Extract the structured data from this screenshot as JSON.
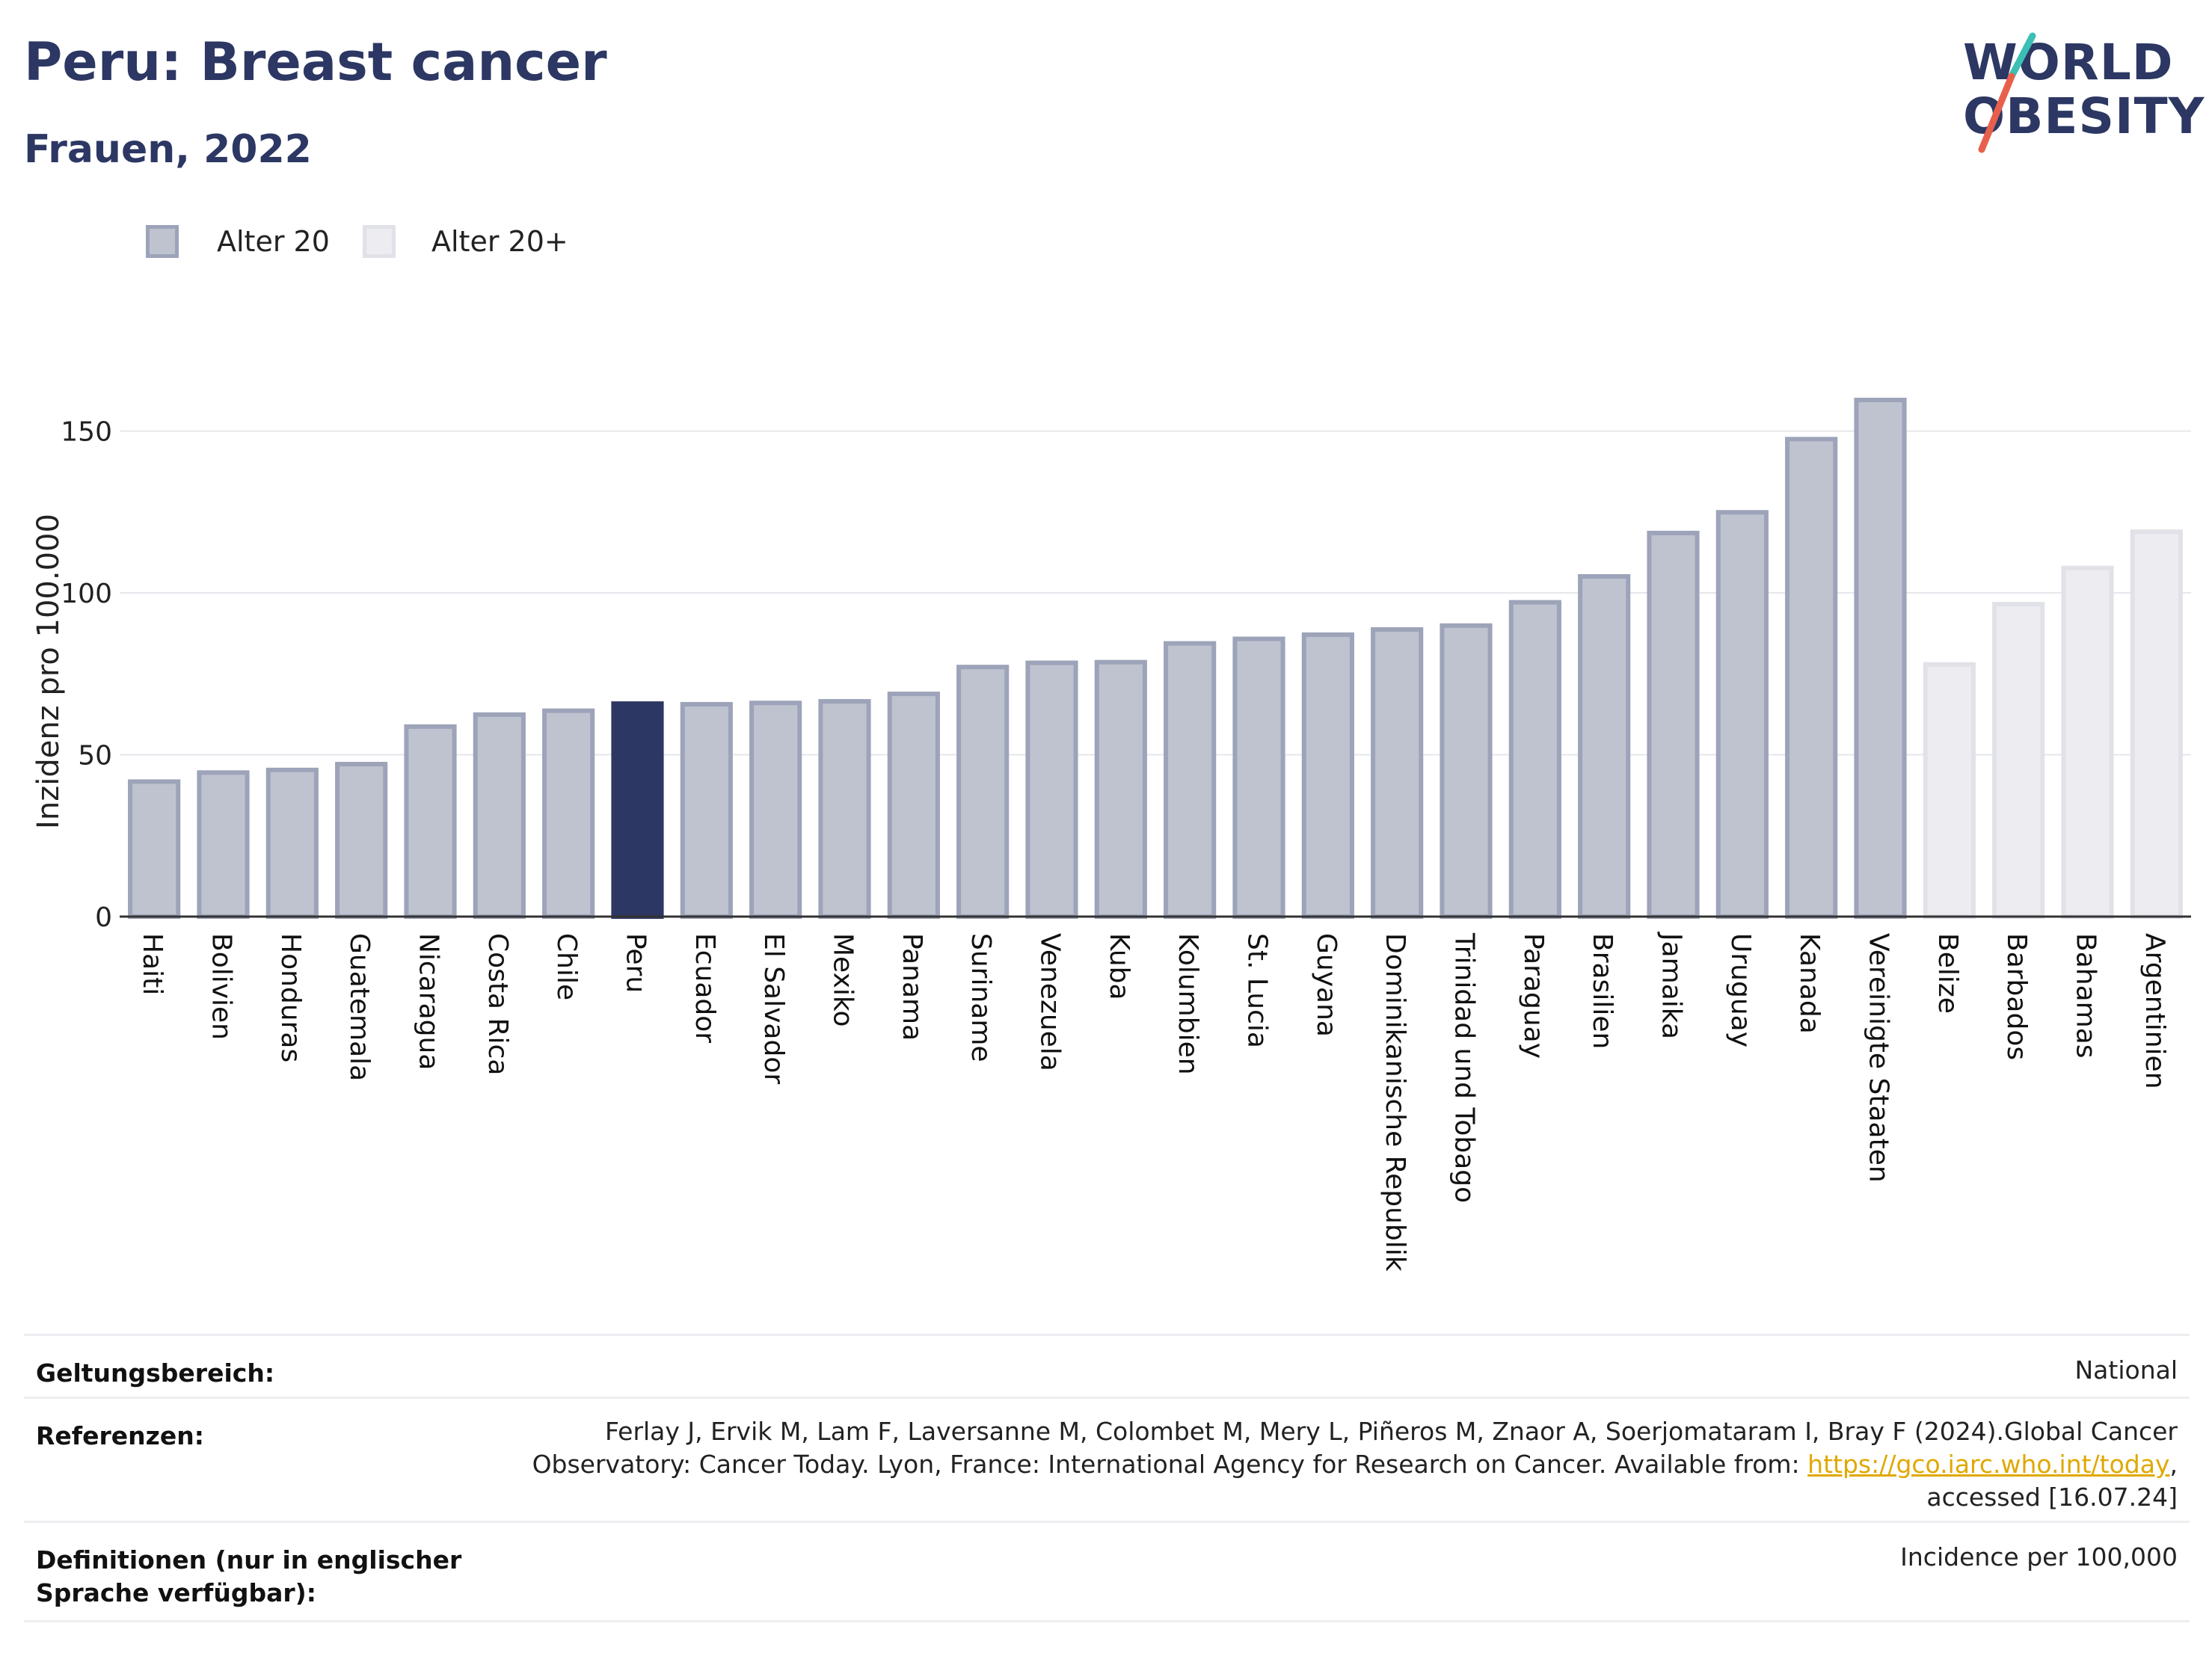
{
  "header": {
    "title": "Peru: Breast cancer",
    "subtitle": "Frauen, 2022"
  },
  "logo": {
    "line1": "WORLD",
    "line2": "OBESITY",
    "colors": {
      "text": "#2c3763",
      "slash_top": "#3cbfb4",
      "slash_bottom": "#e8604c"
    }
  },
  "legend": [
    {
      "label": "Alter 20",
      "color": "#bfc3d0",
      "border": "#9da3b8"
    },
    {
      "label": "Alter 20+",
      "color": "#ececf1",
      "border": "#e1e2e8"
    }
  ],
  "colors": {
    "highlight": "#2c3763",
    "age20_fill": "#bfc3d0",
    "age20_border": "#9da3b8",
    "age20plus_fill": "#ececf1",
    "age20plus_border": "#e1e2e8",
    "grid": "#e6e7ec",
    "axis": "#333333"
  },
  "chart_data": {
    "type": "bar",
    "ylabel": "Inzidenz pro 100.000",
    "ylim": [
      0,
      170
    ],
    "yticks": [
      0,
      50,
      100,
      150
    ],
    "grid": true,
    "highlight": "Peru",
    "categories": [
      "Haiti",
      "Bolivien",
      "Honduras",
      "Guatemala",
      "Nicaragua",
      "Costa Rica",
      "Chile",
      "Peru",
      "Ecuador",
      "El Salvador",
      "Mexiko",
      "Panama",
      "Suriname",
      "Venezuela",
      "Kuba",
      "Kolumbien",
      "St. Lucia",
      "Guyana",
      "Dominikanische Republik",
      "Trinidad und Tobago",
      "Paraguay",
      "Brasilien",
      "Jamaika",
      "Uruguay",
      "Kanada",
      "Vereinigte Staaten",
      "Belize",
      "Barbados",
      "Bahamas",
      "Argentinien"
    ],
    "values": [
      42.4,
      45.2,
      46.0,
      47.8,
      59.4,
      63.1,
      64.3,
      66.5,
      66.3,
      66.7,
      67.2,
      69.5,
      77.8,
      79.1,
      79.3,
      85.1,
      86.5,
      87.8,
      89.4,
      90.6,
      97.8,
      105.8,
      119.2,
      125.6,
      148.2,
      160.3,
      78.6,
      97.2,
      108.4,
      119.6
    ],
    "groups": [
      "Alter 20",
      "Alter 20",
      "Alter 20",
      "Alter 20",
      "Alter 20",
      "Alter 20",
      "Alter 20",
      "Alter 20",
      "Alter 20",
      "Alter 20",
      "Alter 20",
      "Alter 20",
      "Alter 20",
      "Alter 20",
      "Alter 20",
      "Alter 20",
      "Alter 20",
      "Alter 20",
      "Alter 20",
      "Alter 20",
      "Alter 20",
      "Alter 20",
      "Alter 20",
      "Alter 20",
      "Alter 20",
      "Alter 20",
      "Alter 20+",
      "Alter 20+",
      "Alter 20+",
      "Alter 20+"
    ]
  },
  "footer": {
    "scope_label": "Geltungsbereich:",
    "scope_value": "National",
    "ref_label": "Referenzen:",
    "ref_line1": "Ferlay J, Ervik M, Lam F, Laversanne M, Colombet M, Mery L, Piñeros M, Znaor A, Soerjomataram I, Bray F (2024).Global Cancer",
    "ref_line2_text": "Observatory: Cancer Today. Lyon, France: International Agency for Research on Cancer. Available from: ",
    "ref_link": "https://gco.iarc.who.int/today",
    "ref_line2_end": ",",
    "ref_line3": "accessed [16.07.24]",
    "def_label": "Definitionen (nur in englischer Sprache verfügbar):",
    "def_value": "Incidence per 100,000"
  }
}
